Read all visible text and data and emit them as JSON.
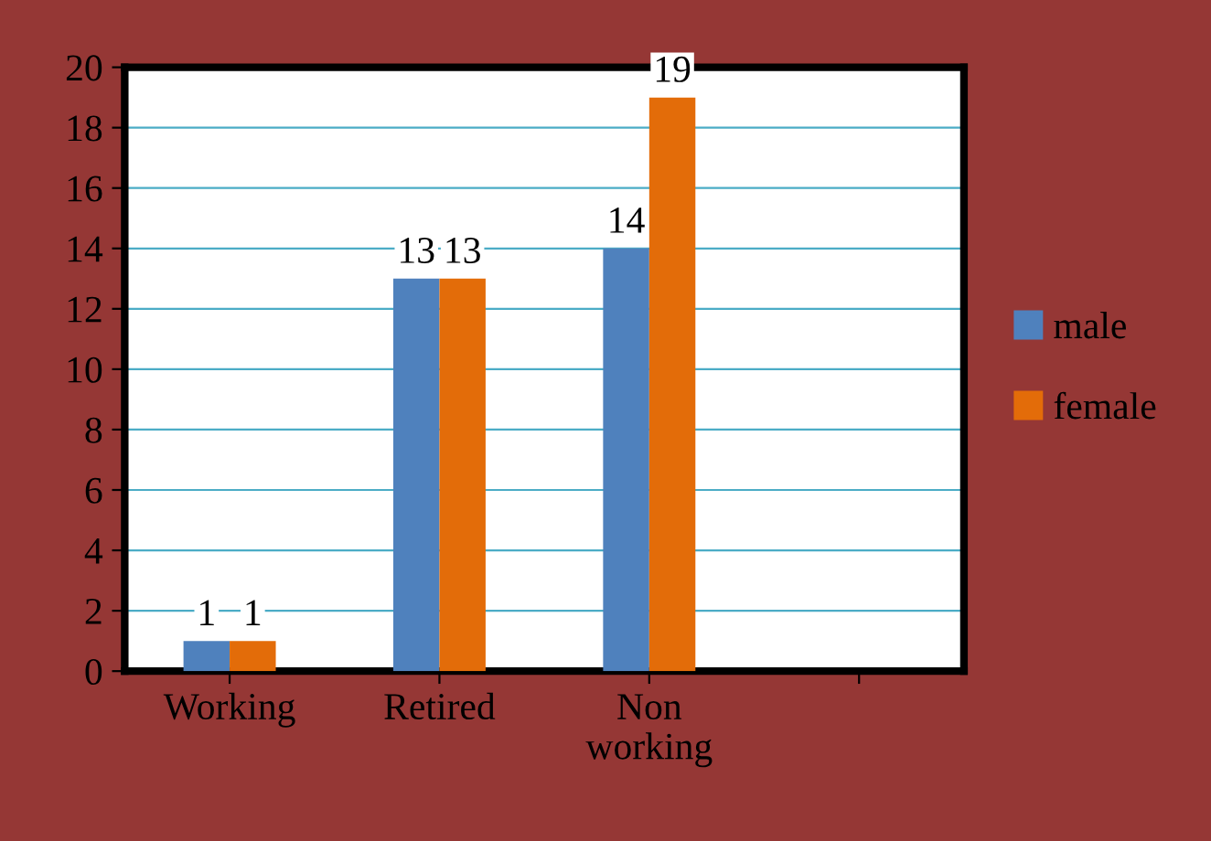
{
  "chart_data": {
    "type": "bar",
    "categories": [
      "Working",
      "Retired",
      "Non\nworking",
      null
    ],
    "series": [
      {
        "name": "male",
        "color": "#4f81bd",
        "values": [
          1,
          13,
          14,
          null
        ]
      },
      {
        "name": "female",
        "color": "#e36c09",
        "values": [
          1,
          13,
          19,
          null
        ]
      }
    ],
    "ylim": [
      0,
      20
    ],
    "yticks": [
      0,
      2,
      4,
      6,
      8,
      10,
      12,
      14,
      16,
      18,
      20
    ],
    "grid": "y",
    "legend": "right",
    "data_labels": true
  }
}
